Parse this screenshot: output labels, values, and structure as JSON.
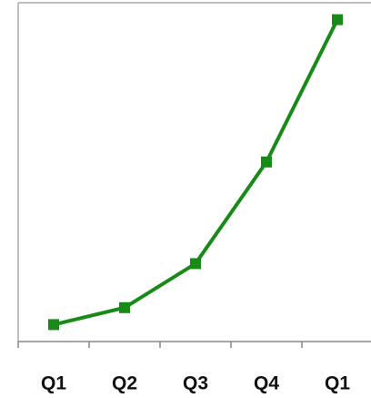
{
  "chart_data": {
    "type": "line",
    "categories": [
      "Q1",
      "Q2",
      "Q3",
      "Q4",
      "Q1"
    ],
    "series": [
      {
        "color": "#188a18",
        "values": [
          5,
          10,
          23,
          53,
          95
        ]
      }
    ],
    "ylim": [
      0,
      100
    ]
  }
}
